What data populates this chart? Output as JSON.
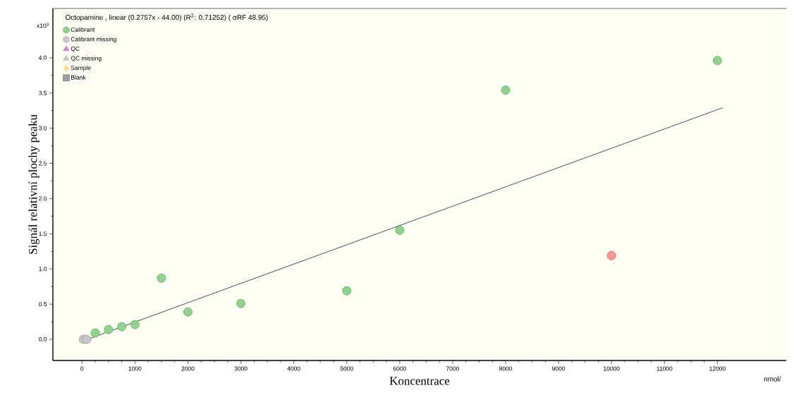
{
  "chart_data": {
    "type": "scatter",
    "title": "Octopamine , linear (0.2757x - 44.00) (R$^{2}$: 0.71252)  ( σRF 48.95)",
    "xlabel": "Koncentrace",
    "ylabel": "Signál relativní plochy peaku",
    "annotations": [
      "x10$^{3}$",
      "nmol/"
    ],
    "xlim": [
      -550,
      13300
    ],
    "ylim": [
      -0.3,
      4.7
    ],
    "xticks": [
      0,
      1000,
      2000,
      3000,
      4000,
      5000,
      6000,
      7000,
      8000,
      9000,
      10000,
      11000,
      12000
    ],
    "yticks": [
      {
        "value": 0,
        "label": "0.0"
      },
      0.5,
      {
        "value": 1,
        "label": "1.0"
      },
      1.5,
      {
        "value": 2,
        "label": "2.0"
      },
      2.5,
      {
        "value": 3,
        "label": "3.0"
      },
      3.5,
      {
        "value": 4,
        "label": "4.0"
      }
    ],
    "legend": "top left",
    "grid": false,
    "series": [
      {
        "name": "Calibrant",
        "marker": "circle",
        "color": "#2ea02e",
        "x": [
          250,
          500,
          750,
          1000,
          1500,
          2000,
          3000,
          5000,
          6000,
          8000,
          12000
        ],
        "values": [
          0.09,
          0.14,
          0.18,
          0.21,
          0.87,
          0.39,
          0.51,
          0.69,
          1.55,
          3.54,
          3.96
        ]
      },
      {
        "name": "Calibrant missing",
        "marker": "circle",
        "color": "#909090",
        "x": [
          25,
          90
        ],
        "values": [
          0.0,
          0.0
        ]
      },
      {
        "name": "QC",
        "marker": "triangle",
        "color": "#a020a0"
      },
      {
        "name": "QC missing",
        "marker": "triangle",
        "color": "#909090"
      },
      {
        "name": "Sample",
        "marker": "diamond",
        "color": "#f0c020"
      },
      {
        "name": "Blank",
        "marker": "square",
        "color": "#404040"
      },
      {
        "marker": "circle",
        "color": "#f03030",
        "x": [
          10000
        ],
        "values": [
          1.19
        ]
      },
      {
        "type": "line",
        "marker": "none",
        "line_style": "solid",
        "color": "#000000",
        "x": [
          100,
          12100
        ],
        "values": [
          0.0,
          3.29
        ]
      }
    ]
  }
}
